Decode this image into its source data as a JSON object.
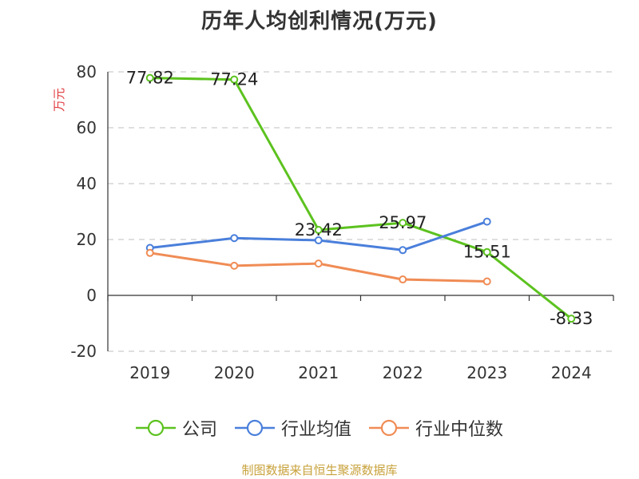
{
  "chart_data": {
    "type": "line",
    "title": "历年人均创利情况(万元)",
    "ylabel": "万元",
    "xlabel": "",
    "categories": [
      "2019",
      "2020",
      "2021",
      "2022",
      "2023",
      "2024"
    ],
    "ylim": [
      -20,
      80
    ],
    "yticks": [
      -20,
      0,
      20,
      40,
      60,
      80
    ],
    "grid": true,
    "legend_position": "bottom",
    "series": [
      {
        "name": "公司",
        "color": "#5cc21f",
        "values": [
          77.82,
          77.24,
          23.42,
          25.97,
          15.51,
          -8.33
        ],
        "labels": [
          "77.82",
          "77.24",
          "23.42",
          "25.97",
          "15.51",
          "-8.33"
        ]
      },
      {
        "name": "行业均值",
        "color": "#4a7fdb",
        "values": [
          17.0,
          20.5,
          19.7,
          16.2,
          26.4,
          null
        ],
        "labels": []
      },
      {
        "name": "行业中位数",
        "color": "#f08c55",
        "values": [
          15.2,
          10.6,
          11.4,
          5.7,
          5.0,
          null
        ],
        "labels": []
      }
    ]
  },
  "footer": {
    "source": "制图数据来自恒生聚源数据库"
  }
}
